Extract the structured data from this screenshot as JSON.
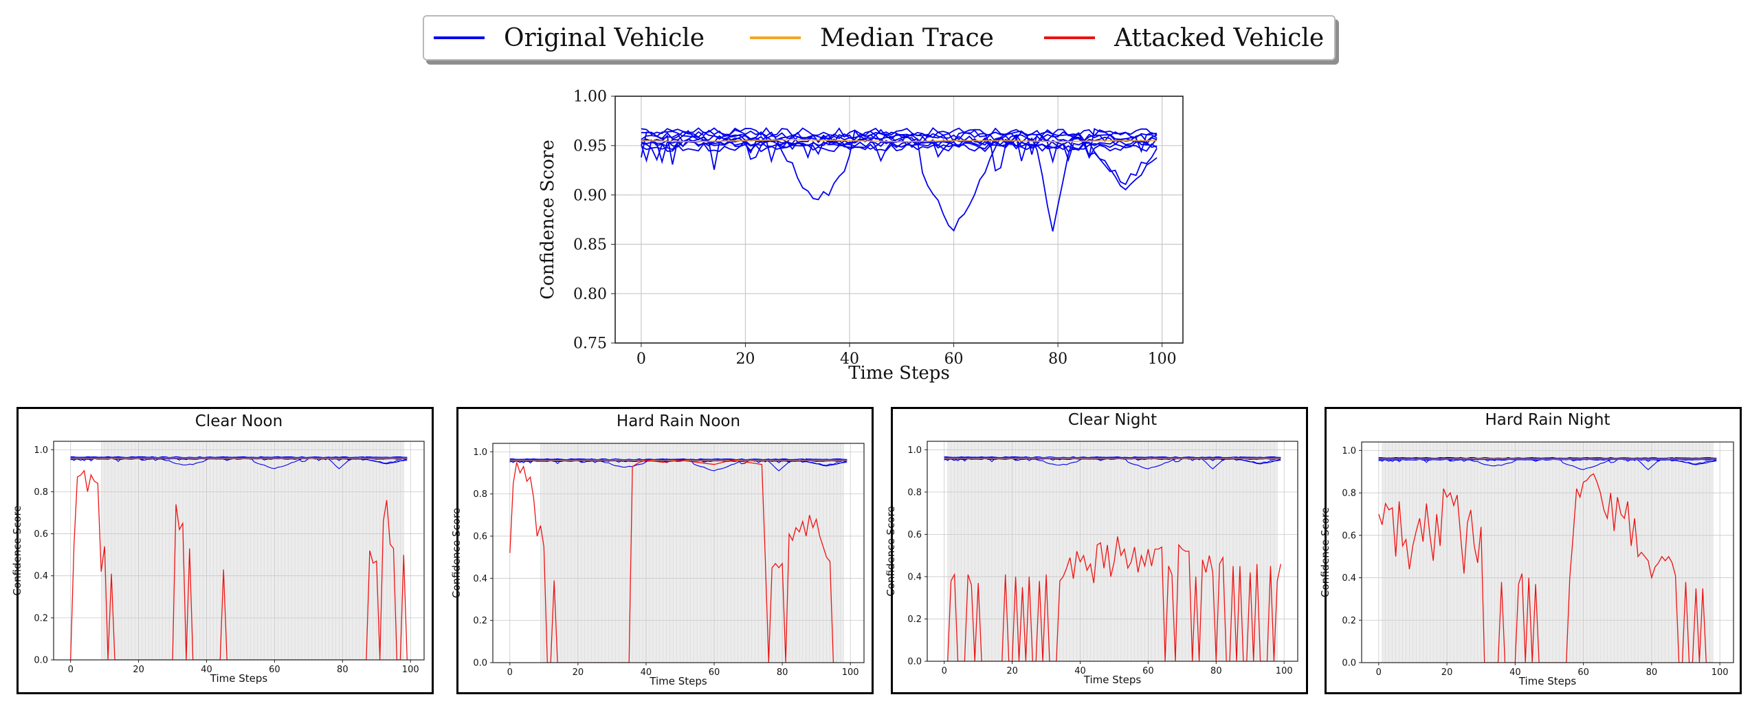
{
  "legend": {
    "items": [
      {
        "label": "Original Vehicle",
        "color": "#0000ee"
      },
      {
        "label": "Median Trace",
        "color": "#f5a623"
      },
      {
        "label": "Attacked Vehicle",
        "color": "#ee1111"
      }
    ]
  },
  "chart_data": [
    {
      "type": "line",
      "title": "",
      "xlabel": "Time Steps",
      "ylabel": "Confidence Score",
      "xlim": [
        -5,
        104
      ],
      "ylim": [
        0.75,
        1.0
      ],
      "xticks": [
        0,
        20,
        40,
        60,
        80,
        100
      ],
      "yticks": [
        0.75,
        0.8,
        0.85,
        0.9,
        0.95,
        1.0
      ],
      "ytick_labels": [
        "0.75",
        "0.80",
        "0.85",
        "0.90",
        "0.95",
        "1.00"
      ],
      "grid": true,
      "original_trace_count": 10,
      "original_base_levels": [
        0.962,
        0.958,
        0.955,
        0.952,
        0.95,
        0.964,
        0.96,
        0.957,
        0.953,
        0.948
      ],
      "original_dips": [
        {
          "from": 22,
          "to": 40,
          "min": 0.89,
          "at": 34
        },
        {
          "from": 54,
          "to": 72,
          "min": 0.86,
          "at": 60
        },
        {
          "from": 76,
          "to": 82,
          "min": 0.865,
          "at": 79
        },
        {
          "from": 83,
          "to": 99,
          "min": 0.91,
          "at": 93
        }
      ],
      "median": [
        0.955,
        0.954,
        0.955,
        0.956,
        0.955,
        0.954,
        0.955,
        0.955,
        0.954,
        0.955,
        0.955
      ],
      "median_x": [
        0,
        10,
        20,
        30,
        40,
        50,
        60,
        70,
        80,
        90,
        99
      ]
    },
    {
      "type": "line",
      "title": "Clear Noon",
      "xlabel": "Time Steps",
      "ylabel": "Confidence Score",
      "xlim": [
        -5,
        104
      ],
      "ylim": [
        0,
        1.04
      ],
      "xticks": [
        0,
        20,
        40,
        60,
        80,
        100
      ],
      "yticks": [
        0.0,
        0.2,
        0.4,
        0.6,
        0.8,
        1.0
      ],
      "ytick_labels": [
        "0.0",
        "0.2",
        "0.4",
        "0.6",
        "0.8",
        "1.0"
      ],
      "shaded_range": [
        9,
        98
      ],
      "attacked_x": [
        0,
        1,
        2,
        3,
        4,
        5,
        6,
        7,
        8,
        9,
        10,
        11,
        12,
        13,
        14,
        30,
        31,
        32,
        33,
        34,
        35,
        36,
        44,
        45,
        46,
        87,
        88,
        89,
        90,
        91,
        92,
        93,
        94,
        95,
        96,
        97,
        98,
        99
      ],
      "attacked_y": [
        0.0,
        0.55,
        0.87,
        0.88,
        0.9,
        0.8,
        0.88,
        0.85,
        0.84,
        0.42,
        0.54,
        0.0,
        0.41,
        0.0,
        0.0,
        0.0,
        0.74,
        0.62,
        0.65,
        0.0,
        0.53,
        0.0,
        0.0,
        0.43,
        0.0,
        0.0,
        0.52,
        0.46,
        0.47,
        0.0,
        0.66,
        0.76,
        0.55,
        0.53,
        0.0,
        0.0,
        0.5,
        0.0
      ]
    },
    {
      "type": "line",
      "title": "Hard Rain Noon",
      "xlabel": "Time Steps",
      "ylabel": "Confidence Score",
      "xlim": [
        -5,
        104
      ],
      "ylim": [
        0,
        1.04
      ],
      "xticks": [
        0,
        20,
        40,
        60,
        80,
        100
      ],
      "yticks": [
        0.0,
        0.2,
        0.4,
        0.6,
        0.8,
        1.0
      ],
      "ytick_labels": [
        "0.0",
        "0.2",
        "0.4",
        "0.6",
        "0.8",
        "1.0"
      ],
      "shaded_range": [
        9,
        98
      ],
      "attacked_x": [
        0,
        1,
        2,
        3,
        4,
        5,
        6,
        7,
        8,
        9,
        10,
        11,
        12,
        13,
        14,
        15,
        35,
        36,
        38,
        40,
        45,
        50,
        55,
        60,
        65,
        70,
        74,
        75,
        76,
        77,
        78,
        79,
        80,
        81,
        82,
        83,
        84,
        85,
        86,
        87,
        88,
        89,
        90,
        91,
        92,
        93,
        94,
        95,
        96
      ],
      "attacked_y": [
        0.52,
        0.85,
        0.95,
        0.9,
        0.93,
        0.86,
        0.88,
        0.78,
        0.6,
        0.65,
        0.55,
        0.0,
        0.0,
        0.39,
        0.0,
        0.0,
        0.0,
        0.93,
        0.95,
        0.96,
        0.95,
        0.96,
        0.95,
        0.94,
        0.96,
        0.95,
        0.94,
        0.5,
        0.0,
        0.45,
        0.47,
        0.45,
        0.47,
        0.0,
        0.61,
        0.58,
        0.64,
        0.62,
        0.67,
        0.6,
        0.7,
        0.64,
        0.68,
        0.6,
        0.55,
        0.5,
        0.48,
        0.0,
        0.0
      ]
    },
    {
      "type": "line",
      "title": "Clear Night",
      "xlabel": "Time Steps",
      "ylabel": "Confidence Score",
      "xlim": [
        -5,
        104
      ],
      "ylim": [
        0,
        1.04
      ],
      "xticks": [
        0,
        20,
        40,
        60,
        80,
        100
      ],
      "yticks": [
        0.0,
        0.2,
        0.4,
        0.6,
        0.8,
        1.0
      ],
      "ytick_labels": [
        "0.0",
        "0.2",
        "0.4",
        "0.6",
        "0.8",
        "1.0"
      ],
      "shaded_range": [
        1,
        98
      ],
      "attacked_x": [
        1,
        2,
        3,
        4,
        5,
        6,
        7,
        8,
        9,
        10,
        11,
        12,
        17,
        18,
        19,
        20,
        21,
        22,
        23,
        24,
        25,
        26,
        27,
        28,
        29,
        30,
        31,
        32,
        33,
        34,
        35,
        36,
        37,
        38,
        39,
        40,
        41,
        42,
        43,
        44,
        45,
        46,
        47,
        48,
        49,
        50,
        51,
        52,
        53,
        54,
        55,
        56,
        57,
        58,
        59,
        60,
        61,
        62,
        63,
        64,
        65,
        66,
        67,
        68,
        69,
        70,
        71,
        72,
        73,
        74,
        75,
        76,
        77,
        78,
        79,
        80,
        81,
        82,
        83,
        84,
        85,
        86,
        87,
        88,
        89,
        90,
        91,
        92,
        93,
        94,
        95,
        96,
        97,
        98,
        99
      ],
      "attacked_y": [
        0.0,
        0.38,
        0.41,
        0.0,
        0.0,
        0.0,
        0.41,
        0.36,
        0.0,
        0.37,
        0.0,
        0.0,
        0.0,
        0.41,
        0.0,
        0.0,
        0.4,
        0.0,
        0.35,
        0.0,
        0.4,
        0.0,
        0.0,
        0.38,
        0.0,
        0.41,
        0.0,
        0.0,
        0.0,
        0.38,
        0.4,
        0.44,
        0.49,
        0.39,
        0.52,
        0.47,
        0.5,
        0.43,
        0.46,
        0.37,
        0.55,
        0.56,
        0.44,
        0.55,
        0.4,
        0.47,
        0.59,
        0.5,
        0.53,
        0.44,
        0.47,
        0.54,
        0.42,
        0.5,
        0.45,
        0.53,
        0.45,
        0.53,
        0.53,
        0.54,
        0.0,
        0.45,
        0.41,
        0.0,
        0.55,
        0.53,
        0.52,
        0.52,
        0.0,
        0.4,
        0.0,
        0.48,
        0.42,
        0.5,
        0.42,
        0.0,
        0.46,
        0.49,
        0.0,
        0.0,
        0.45,
        0.0,
        0.45,
        0.0,
        0.0,
        0.42,
        0.0,
        0.46,
        0.0,
        0.0,
        0.0,
        0.45,
        0.0,
        0.38,
        0.46
      ]
    },
    {
      "type": "line",
      "title": "Hard Rain Night",
      "xlabel": "Time Steps",
      "ylabel": "Confidence Score",
      "xlim": [
        -5,
        104
      ],
      "ylim": [
        0,
        1.04
      ],
      "xticks": [
        0,
        20,
        40,
        60,
        80,
        100
      ],
      "yticks": [
        0.0,
        0.2,
        0.4,
        0.6,
        0.8,
        1.0
      ],
      "ytick_labels": [
        "0.0",
        "0.2",
        "0.4",
        "0.6",
        "0.8",
        "1.0"
      ],
      "shaded_range": [
        1,
        98
      ],
      "attacked_x": [
        0,
        1,
        2,
        3,
        4,
        5,
        6,
        7,
        8,
        9,
        10,
        11,
        12,
        13,
        14,
        15,
        16,
        17,
        18,
        19,
        20,
        21,
        22,
        23,
        24,
        25,
        26,
        27,
        28,
        29,
        30,
        31,
        32,
        33,
        34,
        35,
        36,
        37,
        38,
        39,
        40,
        41,
        42,
        43,
        44,
        45,
        46,
        47,
        48,
        49,
        50,
        51,
        52,
        53,
        54,
        55,
        56,
        57,
        58,
        59,
        60,
        61,
        62,
        63,
        64,
        65,
        66,
        67,
        68,
        69,
        70,
        71,
        72,
        73,
        74,
        75,
        76,
        77,
        78,
        79,
        80,
        81,
        82,
        83,
        84,
        85,
        86,
        87,
        88,
        89,
        90,
        91,
        92,
        93,
        94,
        95,
        96,
        97,
        98
      ],
      "attacked_y": [
        0.7,
        0.65,
        0.75,
        0.72,
        0.73,
        0.5,
        0.76,
        0.55,
        0.58,
        0.44,
        0.55,
        0.62,
        0.68,
        0.57,
        0.75,
        0.6,
        0.48,
        0.7,
        0.55,
        0.82,
        0.78,
        0.8,
        0.74,
        0.79,
        0.6,
        0.42,
        0.66,
        0.72,
        0.55,
        0.47,
        0.64,
        0.0,
        0.0,
        0.0,
        0.0,
        0.0,
        0.38,
        0.0,
        0.0,
        0.0,
        0.0,
        0.37,
        0.42,
        0.0,
        0.4,
        0.0,
        0.37,
        0.0,
        0.0,
        0.0,
        0.0,
        0.0,
        0.0,
        0.0,
        0.0,
        0.0,
        0.4,
        0.6,
        0.82,
        0.78,
        0.85,
        0.86,
        0.88,
        0.89,
        0.85,
        0.8,
        0.72,
        0.68,
        0.8,
        0.62,
        0.78,
        0.7,
        0.68,
        0.76,
        0.55,
        0.68,
        0.5,
        0.52,
        0.5,
        0.48,
        0.4,
        0.45,
        0.47,
        0.5,
        0.48,
        0.5,
        0.47,
        0.41,
        0.0,
        0.0,
        0.38,
        0.0,
        0.0,
        0.35,
        0.0,
        0.35,
        0.0,
        0.0,
        0.0
      ]
    }
  ]
}
